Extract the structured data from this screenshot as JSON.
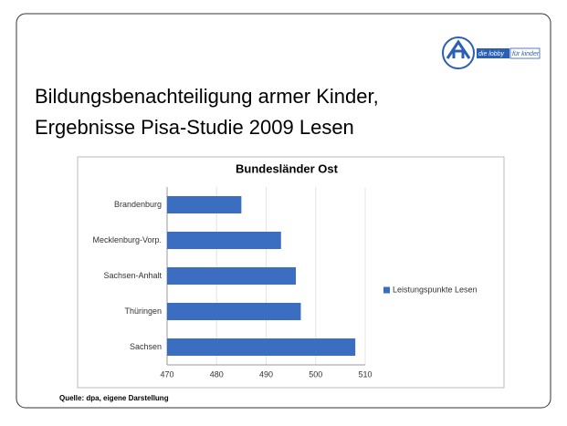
{
  "header": {
    "title_line1": "Bildungsbenachteiligung armer Kinder,",
    "title_line2": "Ergebnisse Pisa-Studie 2009 Lesen"
  },
  "logo": {
    "part1": "die lobby",
    "part2": "für kinder"
  },
  "source": "Quelle: dpa, eigene Darstellung",
  "chart_data": {
    "type": "bar",
    "orientation": "horizontal",
    "title": "Bundesländer Ost",
    "categories": [
      "Brandenburg",
      "Mecklenburg-Vorp.",
      "Sachsen-Anhalt",
      "Thüringen",
      "Sachsen"
    ],
    "series": [
      {
        "name": "Leistungspunkte Lesen",
        "color": "#3b6ec0",
        "values": [
          485,
          493,
          496,
          497,
          508
        ]
      }
    ],
    "xlim": [
      470,
      510
    ],
    "xticks": [
      470,
      480,
      490,
      500,
      510
    ],
    "grid": true,
    "legend": "right"
  }
}
